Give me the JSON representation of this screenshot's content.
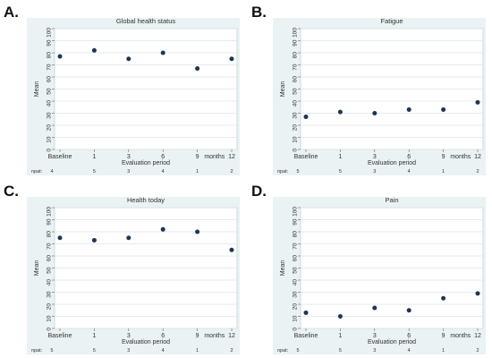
{
  "panels": [
    {
      "letter": "A.",
      "chart_data": {
        "type": "scatter",
        "title": "Global health status",
        "xlabel": "Evaluation period",
        "ylabel": "Mean",
        "x_unit_label": "months",
        "categories": [
          "Baseline",
          "1",
          "3",
          "6",
          "9",
          "12"
        ],
        "values": [
          77,
          82,
          75,
          80,
          67,
          75
        ],
        "npat_label": "npat:",
        "npat": [
          "4",
          "5",
          "3",
          "4",
          "1",
          "2"
        ],
        "ylim": [
          0,
          100
        ],
        "yticks": [
          "0",
          "10",
          "20",
          "30",
          "40",
          "50",
          "60",
          "70",
          "80",
          "90",
          "100"
        ],
        "grid": true
      }
    },
    {
      "letter": "B.",
      "chart_data": {
        "type": "scatter",
        "title": "Fatigue",
        "xlabel": "Evaluation period",
        "ylabel": "Mean",
        "x_unit_label": "months",
        "categories": [
          "Baseline",
          "1",
          "3",
          "6",
          "9",
          "12"
        ],
        "values": [
          27,
          31,
          30,
          33,
          33,
          39
        ],
        "npat_label": "npat:",
        "npat": [
          "5",
          "5",
          "3",
          "4",
          "1",
          "2"
        ],
        "ylim": [
          0,
          100
        ],
        "yticks": [
          "0",
          "10",
          "20",
          "30",
          "40",
          "50",
          "60",
          "70",
          "80",
          "90",
          "100"
        ],
        "grid": true
      }
    },
    {
      "letter": "C.",
      "chart_data": {
        "type": "scatter",
        "title": "Health today",
        "xlabel": "Evaluation period",
        "ylabel": "Mean",
        "x_unit_label": "months",
        "categories": [
          "Baseline",
          "1",
          "3",
          "6",
          "9",
          "12"
        ],
        "values": [
          75,
          73,
          75,
          82,
          80,
          65
        ],
        "npat_label": "npat:",
        "npat": [
          "5",
          "5",
          "3",
          "4",
          "1",
          "2"
        ],
        "ylim": [
          0,
          100
        ],
        "yticks": [
          "0",
          "10",
          "20",
          "30",
          "40",
          "50",
          "60",
          "70",
          "80",
          "90",
          "100"
        ],
        "grid": true
      }
    },
    {
      "letter": "D.",
      "chart_data": {
        "type": "scatter",
        "title": "Pain",
        "xlabel": "Evaluation period",
        "ylabel": "Mean",
        "x_unit_label": "months",
        "categories": [
          "Baseline",
          "1",
          "3",
          "6",
          "9",
          "12"
        ],
        "values": [
          13,
          10,
          17,
          15,
          25,
          29
        ],
        "npat_label": "npat:",
        "npat": [
          "5",
          "5",
          "3",
          "4",
          "1",
          "2"
        ],
        "ylim": [
          0,
          100
        ],
        "yticks": [
          "0",
          "10",
          "20",
          "30",
          "40",
          "50",
          "60",
          "70",
          "80",
          "90",
          "100"
        ],
        "grid": true
      }
    }
  ],
  "colors": {
    "marker": "#1c3552",
    "grid": "#dde4ea",
    "frame": "#c9d1d8",
    "plot_bg": "#ffffff",
    "panel_bg": "#eaf2f3",
    "text": "#333333"
  }
}
